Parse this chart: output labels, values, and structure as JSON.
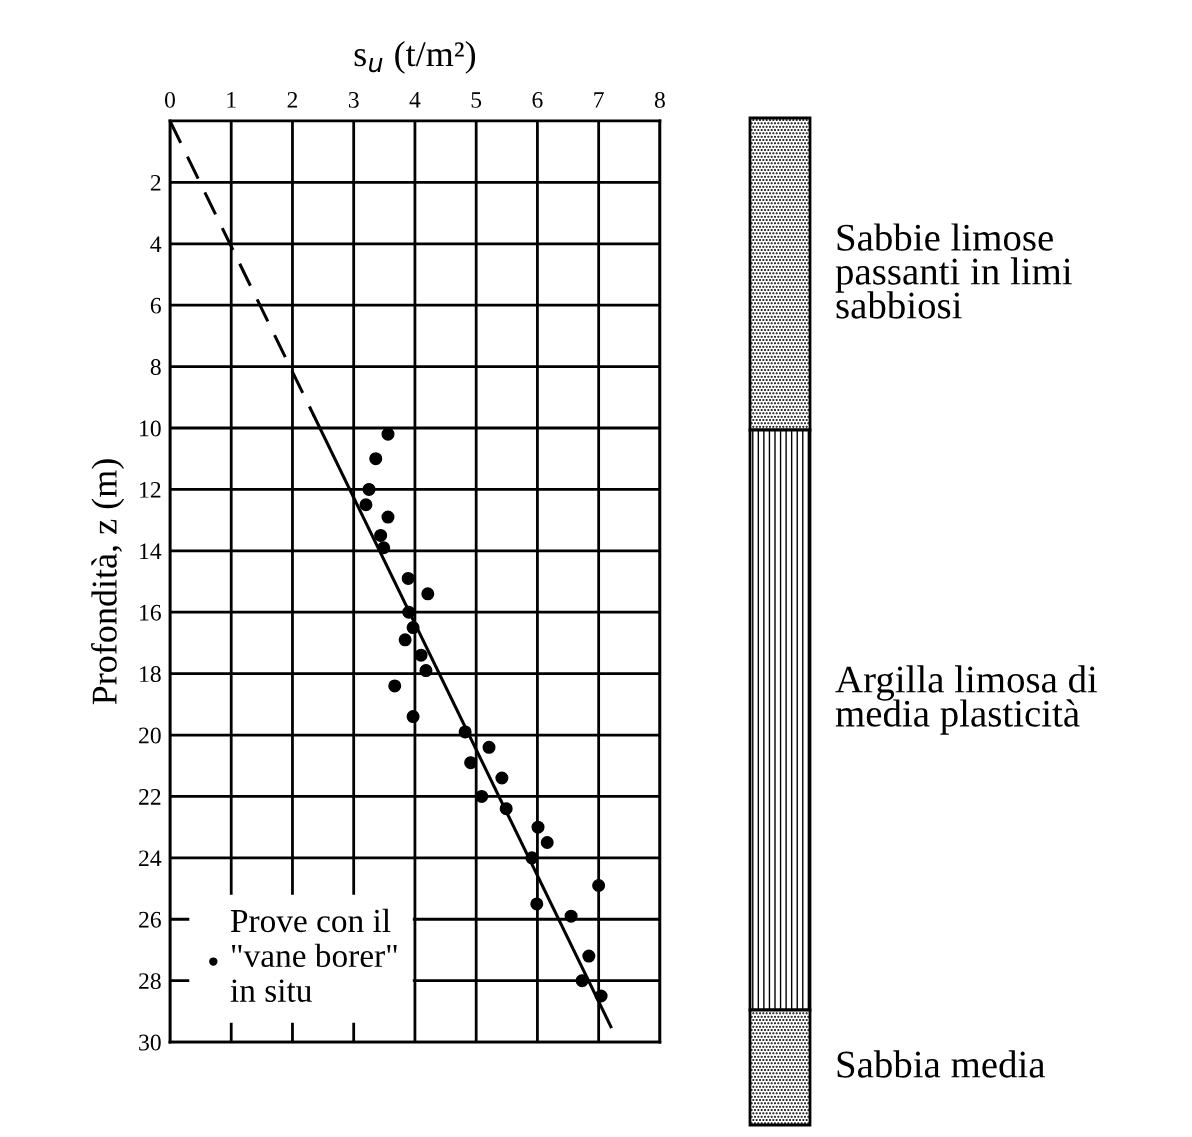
{
  "chart_data": {
    "type": "scatter",
    "xlabel": "s$_{u}$ (t/m²)",
    "ylabel": "Profondità, z (m)",
    "xlim": [
      0,
      8
    ],
    "ylim": [
      30,
      0
    ],
    "xticks": [
      0,
      1,
      2,
      3,
      4,
      5,
      6,
      7,
      8
    ],
    "yticks": [
      2,
      4,
      6,
      8,
      10,
      12,
      14,
      16,
      18,
      20,
      22,
      24,
      26,
      28,
      30
    ],
    "grid": true,
    "legend": "bottom left",
    "marker": "circle",
    "series": [
      {
        "name": "Prove con il \"vane borer\" in situ",
        "color": "#000000",
        "x": [
          3.56,
          3.36,
          3.25,
          3.2,
          3.56,
          3.44,
          3.49,
          3.89,
          4.21,
          3.9,
          3.97,
          3.84,
          4.1,
          4.18,
          3.67,
          3.97,
          4.82,
          5.21,
          4.91,
          5.42,
          5.09,
          5.49,
          6.01,
          6.16,
          5.91,
          7.0,
          5.99,
          6.55,
          6.84,
          6.73,
          7.04
        ],
        "values": [
          10.2,
          11.0,
          12.0,
          12.5,
          12.9,
          13.5,
          13.9,
          14.9,
          15.4,
          16.0,
          16.5,
          16.9,
          17.4,
          17.9,
          18.4,
          19.4,
          19.9,
          20.4,
          20.9,
          21.4,
          22.0,
          22.4,
          23.0,
          23.5,
          24.0,
          24.9,
          25.5,
          25.9,
          27.2,
          28.0,
          28.5
        ]
      },
      {
        "type": "line",
        "line_style": "dashed",
        "marker": "none",
        "color": "#000000",
        "x": [
          0,
          2.35
        ],
        "values": [
          0,
          9.6
        ]
      },
      {
        "type": "line",
        "line_style": "solid",
        "marker": "none",
        "color": "#000000",
        "x": [
          2.35,
          7.2
        ],
        "values": [
          9.6,
          29.5
        ]
      }
    ],
    "annotations": [
      "Sabbie limose\npassanti in limi\nsabbiosi",
      "Argilla limosa di\nmedia plasticità",
      "Sabbia media"
    ]
  }
}
